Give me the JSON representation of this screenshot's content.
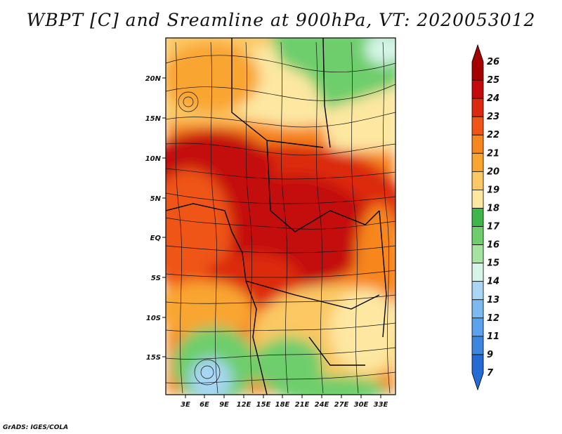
{
  "title": "WBPT [C] and Sreamline at 900hPa, VT: 2020053012",
  "credit": "GrADS: IGES/COLA",
  "map": {
    "lat_labels": [
      "20N",
      "15N",
      "10N",
      "5N",
      "EQ",
      "5S",
      "10S",
      "15S"
    ],
    "lon_labels": [
      "3E",
      "6E",
      "9E",
      "12E",
      "15E",
      "18E",
      "21E",
      "24E",
      "27E",
      "30E",
      "33E"
    ],
    "variable": "wet-bulb potential temperature",
    "overlay": "streamlines"
  },
  "colorbar": {
    "labels": [
      "26",
      "25",
      "24",
      "23",
      "22",
      "21",
      "20",
      "19",
      "18",
      "17",
      "16",
      "15",
      "14",
      "13",
      "12",
      "11",
      "9",
      "7"
    ],
    "colors": [
      "#a50000",
      "#c40a0a",
      "#dc2a10",
      "#ee5516",
      "#f7861f",
      "#f9a530",
      "#fbc863",
      "#fde7a1",
      "#3fb64a",
      "#6ece6c",
      "#a4e4a0",
      "#d6f5e8",
      "#a8d6f4",
      "#7cbaf0",
      "#5aa2ec",
      "#3d86e0",
      "#256bd4"
    ]
  }
}
